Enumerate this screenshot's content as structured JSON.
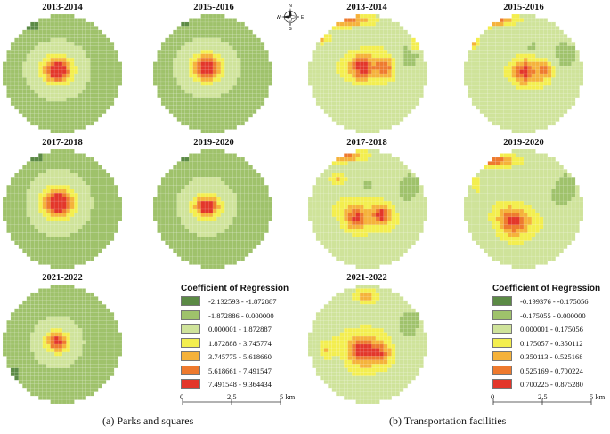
{
  "panels": {
    "left": {
      "caption": "(a) Parks and squares",
      "years": [
        "2013-2014",
        "2015-2016",
        "2017-2018",
        "2019-2020",
        "2021-2022"
      ],
      "legend": {
        "title": "Coefficient of Regression",
        "entries": [
          {
            "label": "-2.132593 - -1.872887",
            "color": "#5b8a45"
          },
          {
            "label": "-1.872886 - 0.000000",
            "color": "#9fc26b"
          },
          {
            "label": "0.000001 - 1.872887",
            "color": "#cfe39a"
          },
          {
            "label": "1.872888 - 3.745774",
            "color": "#f3ee4e"
          },
          {
            "label": "3.745775 - 5.618660",
            "color": "#f5b23a"
          },
          {
            "label": "5.618661 - 7.491547",
            "color": "#ee7a2e"
          },
          {
            "label": "7.491548 - 9.364434",
            "color": "#e3362a"
          }
        ]
      },
      "scale": {
        "ticks": [
          "0",
          "2.5",
          "5 km"
        ]
      }
    },
    "right": {
      "caption": "(b) Transportation facilities",
      "years": [
        "2013-2014",
        "2015-2016",
        "2017-2018",
        "2019-2020",
        "2021-2022"
      ],
      "legend": {
        "title": "Coefficient of Regression",
        "entries": [
          {
            "label": "-0.199376 - -0.175056",
            "color": "#5b8a45"
          },
          {
            "label": "-0.175055 - 0.000000",
            "color": "#9fc26b"
          },
          {
            "label": "0.000001 - 0.175056",
            "color": "#cfe39a"
          },
          {
            "label": "0.175057 - 0.350112",
            "color": "#f3ee4e"
          },
          {
            "label": "0.350113 - 0.525168",
            "color": "#f5b23a"
          },
          {
            "label": "0.525169 - 0.700224",
            "color": "#ee7a2e"
          },
          {
            "label": "0.700225 - 0.875280",
            "color": "#e3362a"
          }
        ]
      },
      "scale": {
        "ticks": [
          "0",
          "2.5",
          "5 km"
        ]
      }
    }
  },
  "compass": {
    "labels": [
      "N",
      "E",
      "S",
      "W"
    ]
  }
}
